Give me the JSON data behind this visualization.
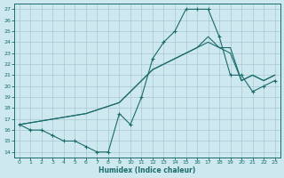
{
  "xlabel": "Humidex (Indice chaleur)",
  "bg_color": "#cde8ee",
  "grid_color": "#aac8d0",
  "line_color": "#1a6b6b",
  "xlim": [
    -0.5,
    23.5
  ],
  "ylim": [
    13.5,
    27.5
  ],
  "xticks": [
    0,
    1,
    2,
    3,
    4,
    5,
    6,
    7,
    8,
    9,
    10,
    11,
    12,
    13,
    14,
    15,
    16,
    17,
    18,
    19,
    20,
    21,
    22,
    23
  ],
  "yticks": [
    14,
    15,
    16,
    17,
    18,
    19,
    20,
    21,
    22,
    23,
    24,
    25,
    26,
    27
  ],
  "line1_x": [
    0,
    1,
    2,
    3,
    4,
    5,
    6,
    7,
    8,
    9,
    10,
    11,
    12,
    13,
    14,
    15,
    16,
    17,
    18,
    19,
    20,
    21,
    22,
    23
  ],
  "line1_y": [
    16.5,
    16,
    16,
    15.5,
    15,
    15,
    14.5,
    14,
    14,
    17.5,
    16.5,
    19,
    22.5,
    24,
    25,
    27,
    27,
    27,
    24.5,
    21,
    21,
    19.5,
    20,
    20.5
  ],
  "line2_x": [
    0,
    3,
    6,
    9,
    10,
    11,
    12,
    13,
    14,
    15,
    16,
    17,
    18,
    19,
    20,
    21,
    22,
    23
  ],
  "line2_y": [
    16.5,
    17,
    17.5,
    18.5,
    19.5,
    20.5,
    21.5,
    22,
    22.5,
    23,
    23.5,
    24,
    23.5,
    23,
    20.5,
    21,
    20.5,
    21
  ],
  "line3_x": [
    0,
    3,
    6,
    9,
    10,
    11,
    12,
    13,
    14,
    15,
    16,
    17,
    18,
    19,
    20,
    21,
    22,
    23
  ],
  "line3_y": [
    16.5,
    17,
    17.5,
    18.5,
    19.5,
    20.5,
    21.5,
    22,
    22.5,
    23,
    23.5,
    24.5,
    23.5,
    23.5,
    20.5,
    21,
    20.5,
    21
  ]
}
